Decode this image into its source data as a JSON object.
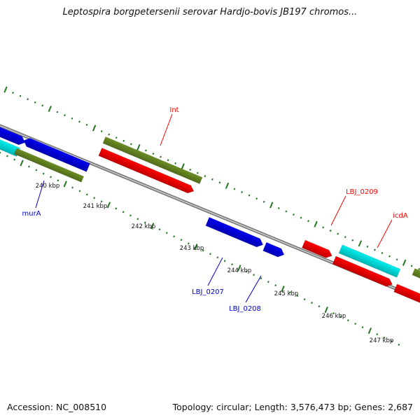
{
  "title": "Leptospira borgpetersenii serovar Hardjo-bovis JB197 chromos...",
  "accession": "Accession: NC_008510",
  "topology": "Topology: circular; Length: 3,576,473 bp; Genes: 2,687",
  "colors": {
    "backbone": "#808080",
    "tick": "#227722",
    "forward_blue": "#0000ee",
    "reverse_red": "#ff0000",
    "olive": "#6b8e23",
    "cyan": "#00eeee",
    "label_red": "#ff0000",
    "label_blue": "#0000cc"
  },
  "scale_labels": [
    "240 kbp",
    "241 kbp",
    "242 kbp",
    "243 kbp",
    "244 kbp",
    "245 kbp",
    "246 kbp",
    "247 kbp"
  ],
  "gene_labels": [
    {
      "text": "Int",
      "color": "red"
    },
    {
      "text": "LBJ_0209",
      "color": "red"
    },
    {
      "text": "icdA",
      "color": "red"
    },
    {
      "text": "murA",
      "color": "blue"
    },
    {
      "text": "LBJ_0207",
      "color": "blue"
    },
    {
      "text": "LBJ_0208",
      "color": "blue"
    }
  ]
}
